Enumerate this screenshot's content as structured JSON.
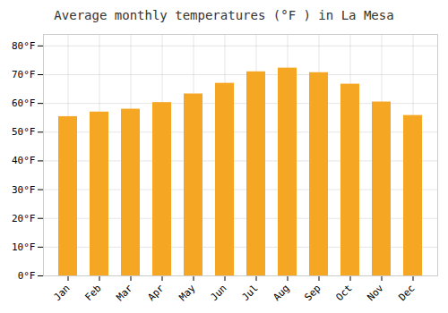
{
  "chart_data": {
    "type": "bar",
    "title": "Average monthly temperatures (°F ) in La Mesa",
    "categories": [
      "Jan",
      "Feb",
      "Mar",
      "Apr",
      "May",
      "Jun",
      "Jul",
      "Aug",
      "Sep",
      "Oct",
      "Nov",
      "Dec"
    ],
    "values": [
      55.4,
      57.0,
      58.0,
      60.3,
      63.3,
      67.0,
      71.0,
      72.3,
      70.7,
      66.7,
      60.5,
      55.8
    ],
    "color": "#F5A623",
    "ylim": [
      0,
      84
    ],
    "yticks": [
      {
        "value": 0,
        "label": "0°F"
      },
      {
        "value": 10,
        "label": "10°F"
      },
      {
        "value": 20,
        "label": "20°F"
      },
      {
        "value": 30,
        "label": "30°F"
      },
      {
        "value": 40,
        "label": "40°F"
      },
      {
        "value": 50,
        "label": "50°F"
      },
      {
        "value": 60,
        "label": "60°F"
      },
      {
        "value": 70,
        "label": "70°F"
      },
      {
        "value": 80,
        "label": "80°F"
      }
    ],
    "grid": true
  }
}
